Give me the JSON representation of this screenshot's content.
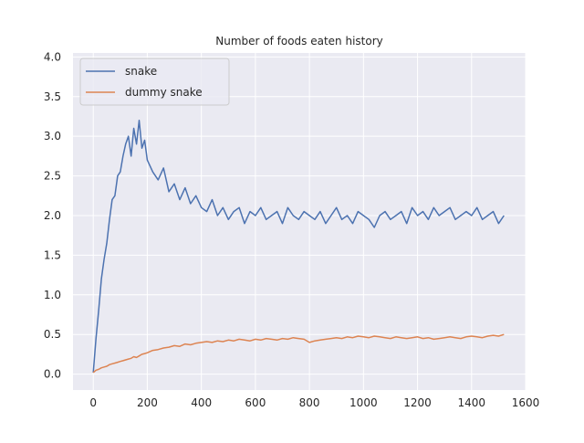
{
  "chart_data": {
    "type": "line",
    "title": "Number of foods eaten history",
    "xlabel": "",
    "ylabel": "",
    "xlim": [
      -75,
      1600
    ],
    "ylim": [
      -0.2,
      4.05
    ],
    "grid": true,
    "legend_position": "top-left",
    "x_ticks": [
      "0",
      "200",
      "400",
      "600",
      "800",
      "1000",
      "1200",
      "1400",
      "1600"
    ],
    "y_ticks": [
      "0.0",
      "0.5",
      "1.0",
      "1.5",
      "2.0",
      "2.5",
      "3.0",
      "3.5",
      "4.0"
    ],
    "x": [
      0,
      10,
      20,
      30,
      40,
      50,
      60,
      70,
      80,
      90,
      100,
      110,
      120,
      130,
      140,
      150,
      160,
      170,
      180,
      190,
      200,
      220,
      240,
      260,
      280,
      300,
      320,
      340,
      360,
      380,
      400,
      420,
      440,
      460,
      480,
      500,
      520,
      540,
      560,
      580,
      600,
      620,
      640,
      660,
      680,
      700,
      720,
      740,
      760,
      780,
      800,
      820,
      840,
      860,
      880,
      900,
      920,
      940,
      960,
      980,
      1000,
      1020,
      1040,
      1060,
      1080,
      1100,
      1120,
      1140,
      1160,
      1180,
      1200,
      1220,
      1240,
      1260,
      1280,
      1300,
      1320,
      1340,
      1360,
      1380,
      1400,
      1420,
      1440,
      1460,
      1480,
      1500,
      1520
    ],
    "series": [
      {
        "name": "snake",
        "color": "#4c72b0",
        "values": [
          0.02,
          0.45,
          0.8,
          1.2,
          1.45,
          1.65,
          1.95,
          2.2,
          2.25,
          2.5,
          2.55,
          2.75,
          2.9,
          3.0,
          2.75,
          3.1,
          2.9,
          3.2,
          2.85,
          2.95,
          2.7,
          2.55,
          2.45,
          2.6,
          2.3,
          2.4,
          2.2,
          2.35,
          2.15,
          2.25,
          2.1,
          2.05,
          2.2,
          2.0,
          2.1,
          1.95,
          2.05,
          2.1,
          1.9,
          2.05,
          2.0,
          2.1,
          1.95,
          2.0,
          2.05,
          1.9,
          2.1,
          2.0,
          1.95,
          2.05,
          2.0,
          1.95,
          2.05,
          1.9,
          2.0,
          2.1,
          1.95,
          2.0,
          1.9,
          2.05,
          2.0,
          1.95,
          1.85,
          2.0,
          2.05,
          1.95,
          2.0,
          2.05,
          1.9,
          2.1,
          2.0,
          2.05,
          1.95,
          2.1,
          2.0,
          2.05,
          2.1,
          1.95,
          2.0,
          2.05,
          2.0,
          2.1,
          1.95,
          2.0,
          2.05,
          1.9,
          2.0
        ]
      },
      {
        "name": "dummy snake",
        "color": "#dd8452",
        "values": [
          0.02,
          0.05,
          0.06,
          0.08,
          0.09,
          0.1,
          0.12,
          0.13,
          0.14,
          0.15,
          0.16,
          0.17,
          0.18,
          0.19,
          0.2,
          0.22,
          0.21,
          0.23,
          0.25,
          0.26,
          0.27,
          0.3,
          0.31,
          0.33,
          0.34,
          0.36,
          0.35,
          0.38,
          0.37,
          0.39,
          0.4,
          0.41,
          0.4,
          0.42,
          0.41,
          0.43,
          0.42,
          0.44,
          0.43,
          0.42,
          0.44,
          0.43,
          0.45,
          0.44,
          0.43,
          0.45,
          0.44,
          0.46,
          0.45,
          0.44,
          0.4,
          0.42,
          0.43,
          0.44,
          0.45,
          0.46,
          0.45,
          0.47,
          0.46,
          0.48,
          0.47,
          0.46,
          0.48,
          0.47,
          0.46,
          0.45,
          0.47,
          0.46,
          0.45,
          0.46,
          0.47,
          0.45,
          0.46,
          0.44,
          0.45,
          0.46,
          0.47,
          0.46,
          0.45,
          0.47,
          0.48,
          0.47,
          0.46,
          0.48,
          0.49,
          0.48,
          0.5
        ]
      }
    ]
  }
}
